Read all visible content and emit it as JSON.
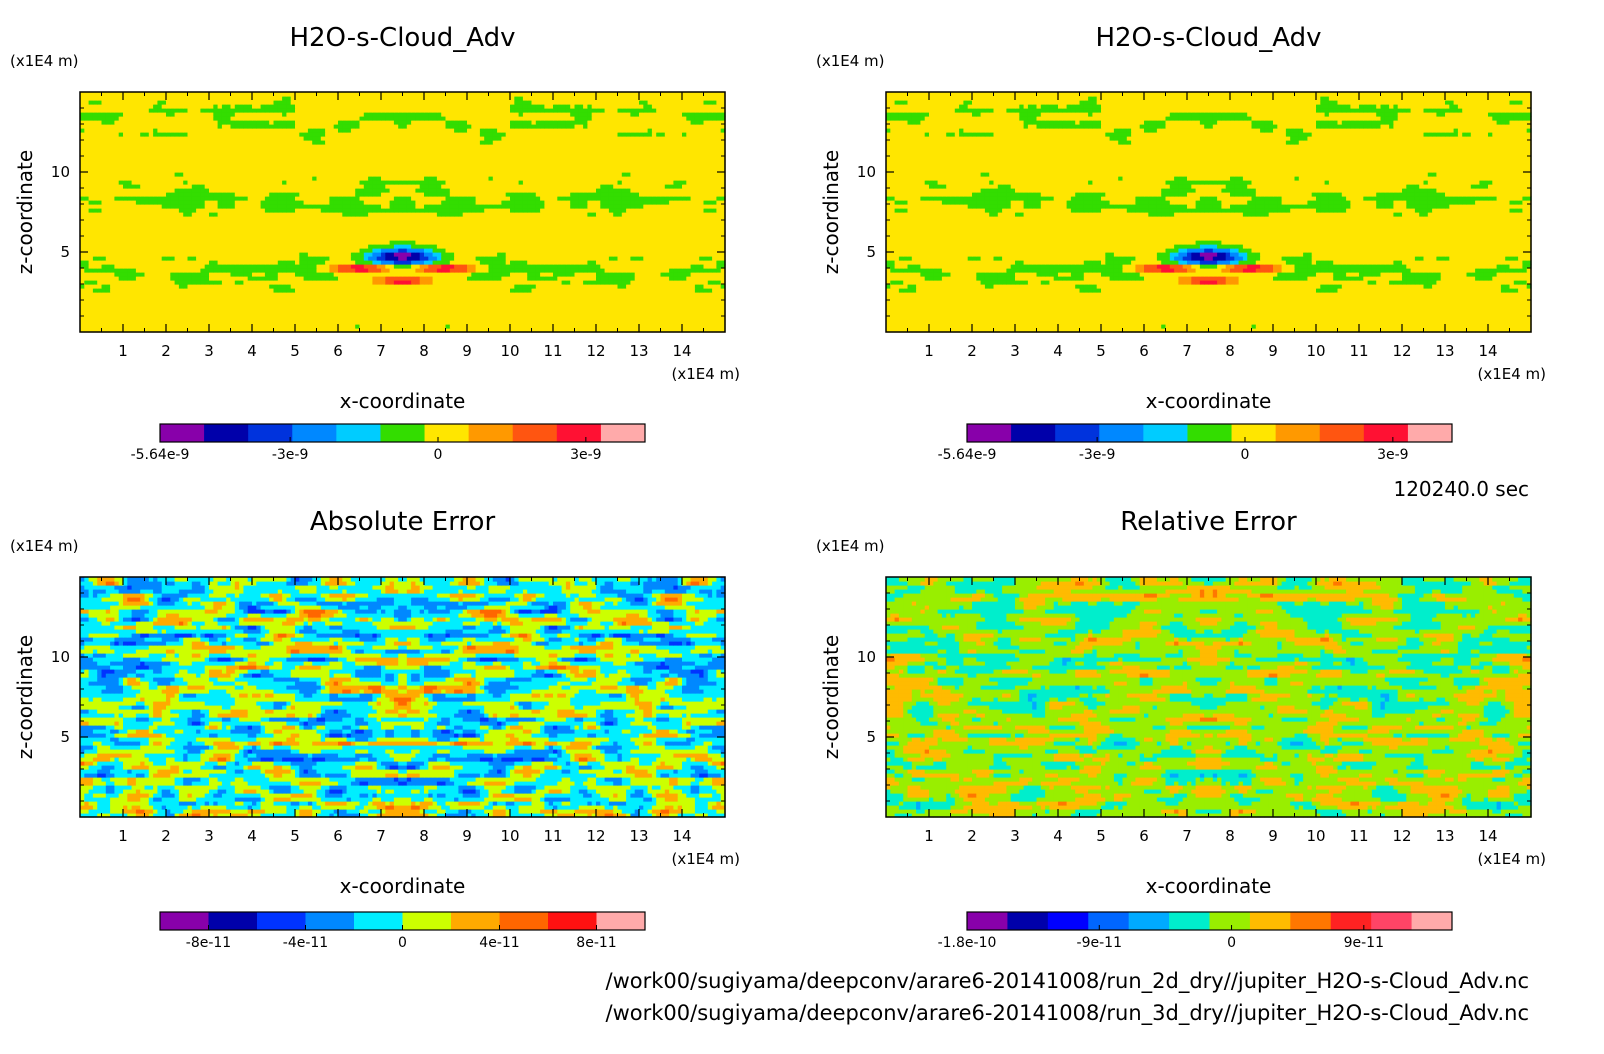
{
  "time_label": "120240.0 sec",
  "footer": {
    "line1": "/work00/sugiyama/deepconv/arare6-20141008/run_2d_dry//jupiter_H2O-s-Cloud_Adv.nc",
    "line2": "/work00/sugiyama/deepconv/arare6-20141008/run_3d_dry//jupiter_H2O-s-Cloud_Adv.nc"
  },
  "chart_data": [
    {
      "type": "heatmap",
      "title": "H2O-s-Cloud_Adv",
      "xlabel": "x-coordinate",
      "ylabel": "z-coordinate",
      "x_unit": "(x1E4 m)",
      "y_unit": "(x1E4 m)",
      "xlim": [
        0,
        15
      ],
      "ylim": [
        0,
        15
      ],
      "x_ticks": [
        1,
        2,
        3,
        4,
        5,
        6,
        7,
        8,
        9,
        10,
        11,
        12,
        13,
        14
      ],
      "y_ticks": [
        5,
        10
      ],
      "pattern": "signal",
      "colorbar": {
        "colors": [
          "#8800aa",
          "#0000aa",
          "#0033dd",
          "#0088ff",
          "#00ccff",
          "#33dd00",
          "#ffe600",
          "#ff9900",
          "#ff5511",
          "#ff1133",
          "#ffaaaa"
        ],
        "tick_labels": [
          "-5.64e-9",
          "-3e-9",
          "0",
          "3e-9"
        ],
        "tick_values": [
          -5.64e-09,
          -3e-09,
          0,
          3e-09
        ],
        "range": [
          -5.64e-09,
          4.2e-09
        ]
      }
    },
    {
      "type": "heatmap",
      "title": "H2O-s-Cloud_Adv",
      "xlabel": "x-coordinate",
      "ylabel": "z-coordinate",
      "x_unit": "(x1E4 m)",
      "y_unit": "(x1E4 m)",
      "xlim": [
        0,
        15
      ],
      "ylim": [
        0,
        15
      ],
      "x_ticks": [
        1,
        2,
        3,
        4,
        5,
        6,
        7,
        8,
        9,
        10,
        11,
        12,
        13,
        14
      ],
      "y_ticks": [
        5,
        10
      ],
      "pattern": "signal",
      "colorbar": {
        "colors": [
          "#8800aa",
          "#0000aa",
          "#0033dd",
          "#0088ff",
          "#00ccff",
          "#33dd00",
          "#ffe600",
          "#ff9900",
          "#ff5511",
          "#ff1133",
          "#ffaaaa"
        ],
        "tick_labels": [
          "-5.64e-9",
          "-3e-9",
          "0",
          "3e-9"
        ],
        "tick_values": [
          -5.64e-09,
          -3e-09,
          0,
          3e-09
        ],
        "range": [
          -5.64e-09,
          4.2e-09
        ]
      }
    },
    {
      "type": "heatmap",
      "title": "Absolute Error",
      "xlabel": "x-coordinate",
      "ylabel": "z-coordinate",
      "x_unit": "(x1E4 m)",
      "y_unit": "(x1E4 m)",
      "xlim": [
        0,
        15
      ],
      "ylim": [
        0,
        15
      ],
      "x_ticks": [
        1,
        2,
        3,
        4,
        5,
        6,
        7,
        8,
        9,
        10,
        11,
        12,
        13,
        14
      ],
      "y_ticks": [
        5,
        10
      ],
      "pattern": "abs",
      "colorbar": {
        "colors": [
          "#8800aa",
          "#0000aa",
          "#0033ff",
          "#0088ff",
          "#00eeff",
          "#ccff00",
          "#ffaa00",
          "#ff6600",
          "#ff1111",
          "#ffaaaa"
        ],
        "tick_labels": [
          "-8e-11",
          "-4e-11",
          "0",
          "4e-11",
          "8e-11"
        ],
        "tick_values": [
          -8e-11,
          -4e-11,
          0,
          4e-11,
          8e-11
        ],
        "range": [
          -1e-10,
          1e-10
        ]
      }
    },
    {
      "type": "heatmap",
      "title": "Relative Error",
      "xlabel": "x-coordinate",
      "ylabel": "z-coordinate",
      "x_unit": "(x1E4 m)",
      "y_unit": "(x1E4 m)",
      "xlim": [
        0,
        15
      ],
      "ylim": [
        0,
        15
      ],
      "x_ticks": [
        1,
        2,
        3,
        4,
        5,
        6,
        7,
        8,
        9,
        10,
        11,
        12,
        13,
        14
      ],
      "y_ticks": [
        5,
        10
      ],
      "pattern": "rel",
      "colorbar": {
        "colors": [
          "#8800aa",
          "#0000aa",
          "#0000ff",
          "#0066ff",
          "#00aaff",
          "#00eecc",
          "#99ee00",
          "#ffbb00",
          "#ff7700",
          "#ff2222",
          "#ff4466",
          "#ffaaaa"
        ],
        "tick_labels": [
          "-1.8e-10",
          "-9e-11",
          "0",
          "9e-11"
        ],
        "tick_values": [
          -1.8e-10,
          -9e-11,
          0,
          9e-11
        ],
        "range": [
          -1.8e-10,
          1.5e-10
        ]
      }
    }
  ]
}
